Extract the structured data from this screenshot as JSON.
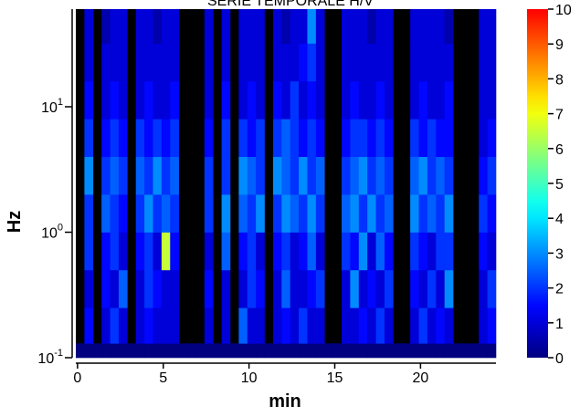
{
  "chart_data": {
    "type": "heatmap",
    "title": "SERIE TEMPORALE H/V",
    "xlabel": "min",
    "ylabel": "Hz",
    "xbins": [
      -0.1,
      0.4,
      0.9,
      1.4,
      1.9,
      2.4,
      2.9,
      3.4,
      3.9,
      4.4,
      4.9,
      5.4,
      5.9,
      6.4,
      6.9,
      7.4,
      7.9,
      8.4,
      8.9,
      9.4,
      9.9,
      10.4,
      10.9,
      11.4,
      11.9,
      12.4,
      12.9,
      13.4,
      13.9,
      14.4,
      14.9,
      15.4,
      15.9,
      16.4,
      16.9,
      17.4,
      17.9,
      18.4,
      18.9,
      19.4,
      19.9,
      20.4,
      20.9,
      21.4,
      21.9,
      22.4,
      22.9,
      23.4,
      23.9,
      24.4
    ],
    "ybins": [
      0.1,
      0.13,
      0.25,
      0.5,
      1,
      2,
      4,
      8,
      16,
      32,
      60
    ],
    "values": [
      [
        0,
        0,
        0,
        0,
        0,
        0,
        0,
        0,
        0,
        0,
        0,
        0,
        0,
        0,
        0,
        0,
        0,
        0,
        0,
        0,
        0,
        0,
        0,
        0,
        0,
        0,
        0,
        0,
        0,
        0,
        0,
        0,
        0,
        0,
        0,
        0,
        0,
        0,
        0,
        0,
        0,
        0,
        0,
        0,
        0,
        0,
        0,
        0,
        0
      ],
      [
        null,
        1.5,
        null,
        1,
        2,
        1,
        null,
        1,
        1.5,
        1,
        1,
        1,
        null,
        null,
        null,
        1,
        null,
        1,
        null,
        2.5,
        1,
        1,
        null,
        1,
        1.5,
        1,
        2,
        1,
        1,
        null,
        null,
        1,
        1,
        1.5,
        1,
        2,
        1,
        null,
        null,
        1,
        2,
        1,
        1.5,
        1,
        null,
        null,
        null,
        1,
        1.5
      ],
      [
        null,
        1,
        null,
        1.5,
        1,
        2.5,
        null,
        1,
        2,
        1.5,
        1,
        1,
        null,
        null,
        null,
        1.5,
        null,
        1,
        null,
        1,
        2,
        1.5,
        null,
        1,
        2.5,
        1,
        1,
        1.5,
        2,
        null,
        null,
        1,
        3,
        1,
        1.5,
        1,
        2,
        null,
        null,
        1.5,
        1,
        2,
        1,
        3,
        null,
        null,
        null,
        1,
        2
      ],
      [
        null,
        2,
        null,
        1.5,
        2,
        1,
        null,
        1.5,
        2,
        1,
        6.5,
        1.5,
        null,
        null,
        null,
        1,
        null,
        2.5,
        null,
        1.5,
        2,
        1,
        null,
        1.5,
        2,
        1,
        1.5,
        2.5,
        1,
        null,
        null,
        2,
        1.5,
        3,
        1,
        2.5,
        1.5,
        null,
        null,
        2,
        1.5,
        1,
        2,
        2,
        null,
        null,
        null,
        1.5,
        1
      ],
      [
        null,
        2,
        null,
        2.5,
        2,
        1.5,
        null,
        2,
        3,
        2,
        2.5,
        2,
        null,
        null,
        null,
        2,
        null,
        3,
        null,
        2.5,
        2,
        3,
        null,
        2,
        3,
        2.5,
        2,
        3,
        2,
        null,
        null,
        2.5,
        3,
        2,
        3,
        2,
        2.5,
        null,
        null,
        3,
        2,
        2.5,
        2,
        3,
        null,
        null,
        null,
        2,
        1.5
      ],
      [
        null,
        3,
        null,
        2,
        2.5,
        2,
        null,
        2.5,
        2,
        3,
        2,
        2.5,
        null,
        null,
        null,
        2,
        null,
        2,
        null,
        3,
        2.5,
        2,
        null,
        3,
        2.5,
        2,
        3,
        2,
        2.5,
        null,
        null,
        2,
        2.5,
        3,
        2,
        2.5,
        2,
        null,
        null,
        2.5,
        3,
        2,
        2.5,
        2,
        null,
        null,
        null,
        1.5,
        2
      ],
      [
        null,
        2,
        null,
        1.5,
        2,
        1.5,
        null,
        2,
        1.5,
        2,
        1.5,
        2,
        null,
        null,
        null,
        1.5,
        null,
        2,
        null,
        2,
        1.5,
        2,
        null,
        2,
        2.5,
        2,
        1.5,
        2,
        1.5,
        null,
        null,
        1.5,
        2,
        2,
        1.5,
        2,
        1.5,
        null,
        null,
        2,
        1.5,
        2,
        1.5,
        1.5,
        null,
        null,
        null,
        1,
        1.5
      ],
      [
        null,
        1.5,
        null,
        1,
        1.5,
        1,
        null,
        1,
        1.5,
        1,
        1,
        1.5,
        null,
        null,
        null,
        1,
        null,
        1.5,
        null,
        1,
        1.5,
        1,
        null,
        1.5,
        1,
        2,
        1,
        1.5,
        1,
        null,
        null,
        1,
        1.5,
        1,
        1,
        1.5,
        1,
        null,
        null,
        1,
        1.5,
        1,
        1,
        1.5,
        null,
        null,
        null,
        1,
        1
      ],
      [
        null,
        1,
        null,
        1,
        1,
        1,
        null,
        1,
        1,
        1,
        1,
        1,
        null,
        null,
        null,
        1,
        null,
        1,
        null,
        1,
        1,
        1,
        null,
        1,
        1,
        1,
        1.5,
        2,
        1,
        null,
        null,
        1,
        1,
        1,
        1,
        1,
        1,
        null,
        null,
        1,
        1,
        1,
        1,
        1,
        null,
        null,
        null,
        1,
        1
      ],
      [
        null,
        1,
        null,
        0.5,
        1,
        1,
        null,
        1,
        1,
        0.5,
        1,
        1,
        null,
        null,
        null,
        1,
        null,
        1,
        null,
        1,
        1,
        1,
        null,
        1,
        0.5,
        1,
        1,
        3,
        1,
        null,
        null,
        1,
        1,
        1,
        0.5,
        1,
        1,
        null,
        null,
        1,
        1,
        1,
        1,
        0.5,
        null,
        null,
        null,
        1,
        1
      ]
    ],
    "xlim": [
      -0.1,
      24.4
    ],
    "xticks": [
      0,
      5,
      10,
      15,
      20
    ],
    "ylim": [
      0.1,
      60
    ],
    "yscale": "log",
    "yticks": [
      {
        "value": 0.1,
        "label": "10",
        "exponent": "-1"
      },
      {
        "value": 1,
        "label": "10",
        "exponent": "0"
      },
      {
        "value": 10,
        "label": "10",
        "exponent": "1"
      }
    ],
    "colormap": "jet",
    "missing_color": "#000000",
    "zlim": [
      0,
      10
    ],
    "colorbar_ticks": [
      0,
      1,
      2,
      3,
      4,
      5,
      6,
      7,
      8,
      9,
      10
    ]
  }
}
